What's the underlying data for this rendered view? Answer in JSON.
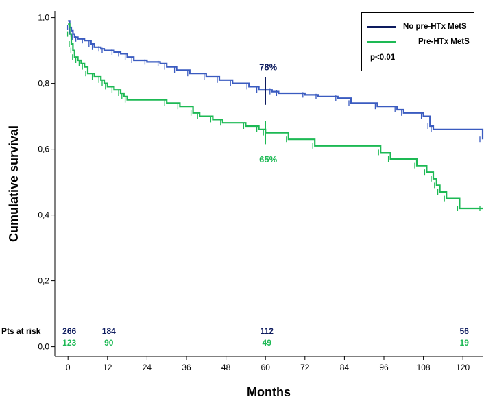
{
  "chart_data": {
    "type": "line",
    "title": "",
    "xlabel": "Months",
    "ylabel": "Cumulative survival",
    "xlim": [
      -4,
      126
    ],
    "ylim": [
      -0.03,
      1.02
    ],
    "x_ticks": [
      0,
      12,
      24,
      36,
      48,
      60,
      72,
      84,
      96,
      108,
      120
    ],
    "y_ticks": [
      0.0,
      0.2,
      0.4,
      0.6,
      0.8,
      1.0
    ],
    "y_tick_labels": [
      "0,0",
      "0,2",
      "0,4",
      "0,6",
      "0,8",
      "1,0"
    ],
    "grid": false,
    "legend_position": "top-right",
    "series": [
      {
        "name": "No pre-HTx MetS",
        "color": "#3A5BC0",
        "legend_color": "#0D1B5E",
        "x": [
          0,
          0.5,
          1,
          1.5,
          2,
          3,
          5,
          7,
          8,
          10,
          11,
          14,
          16,
          18,
          20,
          24,
          28,
          30,
          33,
          37,
          42,
          46,
          50,
          55,
          58,
          62,
          64,
          72,
          76,
          82,
          86,
          94,
          100,
          102,
          108,
          110,
          111,
          126
        ],
        "y": [
          0.99,
          0.97,
          0.96,
          0.95,
          0.94,
          0.935,
          0.93,
          0.92,
          0.91,
          0.905,
          0.9,
          0.895,
          0.89,
          0.88,
          0.87,
          0.865,
          0.86,
          0.85,
          0.84,
          0.83,
          0.82,
          0.81,
          0.8,
          0.79,
          0.78,
          0.775,
          0.77,
          0.765,
          0.76,
          0.755,
          0.74,
          0.73,
          0.72,
          0.71,
          0.7,
          0.67,
          0.66,
          0.63
        ]
      },
      {
        "name": "Pre-HTx MetS",
        "color": "#1DB954",
        "legend_color": "#1DB954",
        "x": [
          0,
          0.5,
          1,
          1.5,
          2,
          3,
          4,
          5,
          6,
          8,
          10,
          11,
          12,
          14,
          16,
          17,
          18,
          30,
          34,
          38,
          40,
          44,
          47,
          54,
          58,
          60,
          67,
          75,
          95,
          98,
          106,
          109,
          111,
          112,
          113,
          115,
          119,
          126
        ],
        "y": [
          0.98,
          0.95,
          0.92,
          0.9,
          0.88,
          0.87,
          0.86,
          0.85,
          0.83,
          0.82,
          0.81,
          0.8,
          0.79,
          0.78,
          0.77,
          0.76,
          0.75,
          0.74,
          0.73,
          0.71,
          0.7,
          0.69,
          0.68,
          0.67,
          0.66,
          0.65,
          0.63,
          0.61,
          0.59,
          0.57,
          0.55,
          0.53,
          0.51,
          0.49,
          0.47,
          0.45,
          0.42,
          0.42
        ]
      }
    ],
    "annotations": [
      {
        "text": "78%",
        "x": 60,
        "y": 0.85,
        "color": "#0D1B5E"
      },
      {
        "text": "65%",
        "x": 60,
        "y": 0.57,
        "color": "#1DB954"
      }
    ],
    "at_risk": {
      "label": "Pts at risk",
      "months": [
        0,
        12,
        60,
        120
      ],
      "no_mets": [
        "266",
        "184",
        "112",
        "56"
      ],
      "mets": [
        "123",
        "90",
        "49",
        "19"
      ]
    },
    "p_value": "p<0.01"
  }
}
